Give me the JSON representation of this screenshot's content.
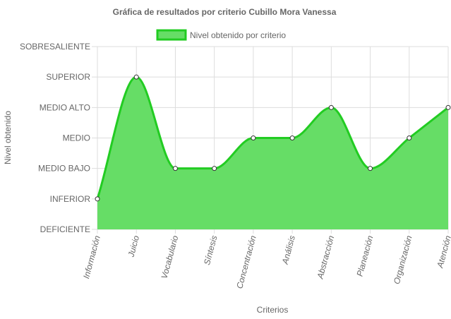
{
  "chart_data": {
    "type": "area",
    "title": "Gráfica de resultados por criterio Cubillo Mora Vanessa",
    "xlabel": "Criterios",
    "ylabel": "Nivel obtenido",
    "categories": [
      "Información",
      "Juicio",
      "Vocabulario",
      "Síntesis",
      "Concentración",
      "Análisis",
      "Abstracción",
      "Planeación",
      "Organización",
      "Atención"
    ],
    "y_levels": [
      "DEFICIENTE",
      "INFERIOR",
      "MEDIO BAJO",
      "MEDIO",
      "MEDIO ALTO",
      "SUPERIOR",
      "SOBRESALIENTE"
    ],
    "series": [
      {
        "name": "Nivel obtenido por criterio",
        "values": [
          "INFERIOR",
          "SUPERIOR",
          "MEDIO BAJO",
          "MEDIO BAJO",
          "MEDIO",
          "MEDIO",
          "MEDIO ALTO",
          "MEDIO BAJO",
          "MEDIO",
          "MEDIO ALTO"
        ]
      }
    ],
    "legend": "top",
    "grid": true,
    "colors": {
      "fill": "#66dd66",
      "line": "#22cc22",
      "point_fill": "#ffffff",
      "point_stroke": "#333333",
      "grid": "#dddddd"
    }
  }
}
